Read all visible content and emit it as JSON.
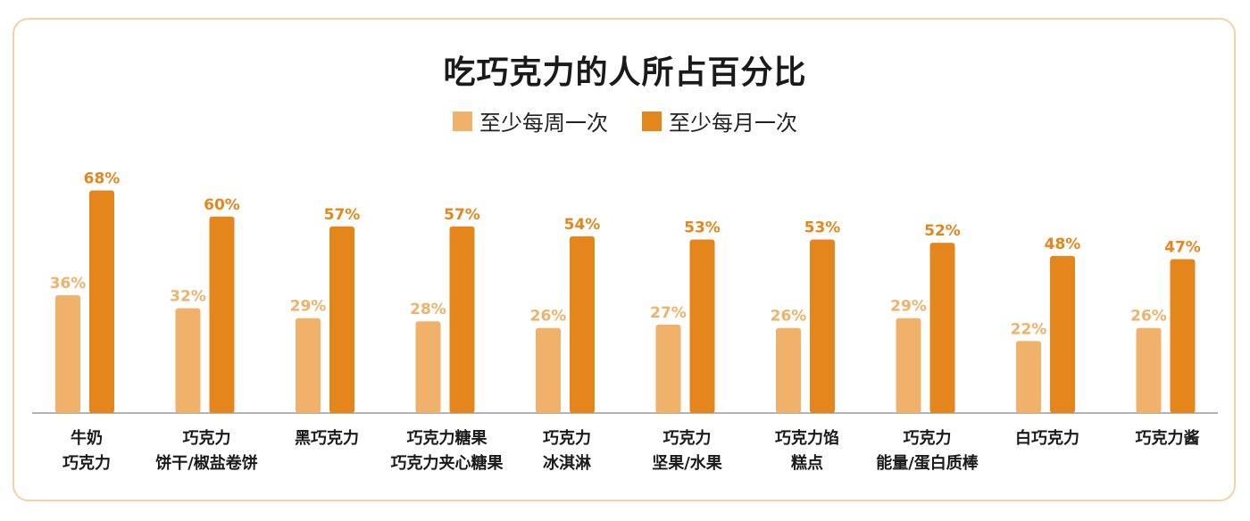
{
  "colors": {
    "weekly": "#f0b16a",
    "monthly": "#e5861c",
    "border": "#f3d1a6",
    "axis": "#9a9a9a"
  },
  "chart_data": {
    "type": "bar",
    "title": "吃巧克力的人所占百分比",
    "categories": [
      [
        "牛奶",
        "巧克力"
      ],
      [
        "巧克力",
        "饼干/椒盐卷饼"
      ],
      [
        "黑巧克力"
      ],
      [
        "巧克力糖果",
        "巧克力夹心糖果"
      ],
      [
        "巧克力",
        "冰淇淋"
      ],
      [
        "巧克力",
        "坚果/水果"
      ],
      [
        "巧克力馅",
        "糕点"
      ],
      [
        "巧克力",
        "能量/蛋白质棒"
      ],
      [
        "白巧克力"
      ],
      [
        "巧克力酱"
      ]
    ],
    "series": [
      {
        "name": "至少每周一次",
        "values": [
          36,
          32,
          29,
          28,
          26,
          27,
          26,
          29,
          22,
          26
        ],
        "labels": [
          "36%",
          "32%",
          "29%",
          "28%",
          "26%",
          "27%",
          "26%",
          "29%",
          "22%",
          "26%"
        ]
      },
      {
        "name": "至少每月一次",
        "values": [
          68,
          60,
          57,
          57,
          54,
          53,
          53,
          52,
          48,
          47
        ],
        "labels": [
          "68%",
          "60%",
          "57%",
          "57%",
          "54%",
          "53%",
          "53%",
          "52%",
          "48%",
          "47%"
        ]
      }
    ],
    "ylim": [
      0,
      100
    ],
    "grid": false,
    "legend": "top-center"
  }
}
